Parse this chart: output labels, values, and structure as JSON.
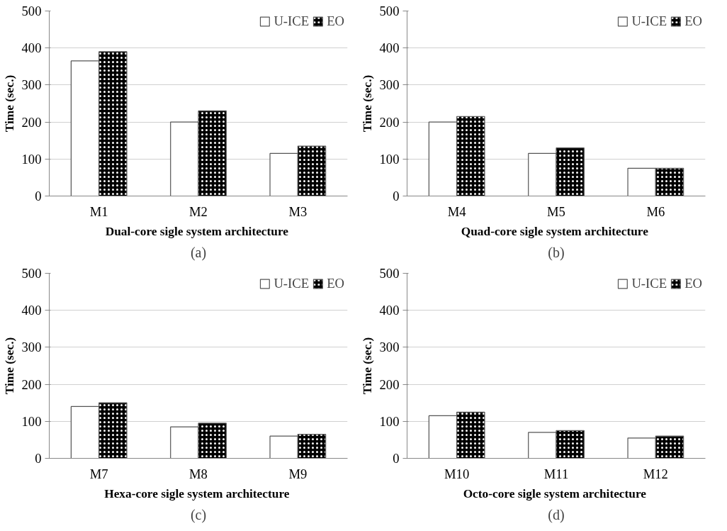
{
  "chart_data": [
    {
      "type": "bar",
      "categories": [
        "M1",
        "M2",
        "M3"
      ],
      "xlabel": "Dual-core  sigle system architecture",
      "ylabel": "Time (sec.)",
      "ylim": [
        0,
        500
      ],
      "yticks": [
        0,
        100,
        200,
        300,
        400,
        500
      ],
      "grid": "y",
      "legend": "top right",
      "annotations": [
        "(a)"
      ],
      "series": [
        {
          "name": "U-ICE",
          "color": "#ffffff",
          "values": [
            365,
            200,
            115
          ]
        },
        {
          "name": "EO",
          "color": "#000000",
          "values": [
            390,
            230,
            135
          ]
        }
      ]
    },
    {
      "type": "bar",
      "categories": [
        "M4",
        "M5",
        "M6"
      ],
      "xlabel": "Quad-core  sigle system architecture",
      "ylabel": "Time (sec.)",
      "ylim": [
        0,
        500
      ],
      "yticks": [
        0,
        100,
        200,
        300,
        400,
        500
      ],
      "grid": "y",
      "legend": "top right",
      "annotations": [
        "(b)"
      ],
      "series": [
        {
          "name": "U-ICE",
          "color": "#ffffff",
          "values": [
            200,
            115,
            75
          ]
        },
        {
          "name": "EO",
          "color": "#000000",
          "values": [
            215,
            130,
            75
          ]
        }
      ]
    },
    {
      "type": "bar",
      "categories": [
        "M7",
        "M8",
        "M9"
      ],
      "xlabel": "Hexa-core  sigle system architecture",
      "ylabel": "Time (sec.)",
      "ylim": [
        0,
        500
      ],
      "yticks": [
        0,
        100,
        200,
        300,
        400,
        500
      ],
      "grid": "y",
      "legend": "top right",
      "annotations": [
        "(c)"
      ],
      "series": [
        {
          "name": "U-ICE",
          "color": "#ffffff",
          "values": [
            140,
            85,
            60
          ]
        },
        {
          "name": "EO",
          "color": "#000000",
          "values": [
            150,
            95,
            65
          ]
        }
      ]
    },
    {
      "type": "bar",
      "categories": [
        "M10",
        "M11",
        "M12"
      ],
      "xlabel": "Octo-core  sigle system architecture",
      "ylabel": "Time (sec.)",
      "ylim": [
        0,
        500
      ],
      "yticks": [
        0,
        100,
        200,
        300,
        400,
        500
      ],
      "grid": "y",
      "legend": "top right",
      "annotations": [
        "(d)"
      ],
      "series": [
        {
          "name": "U-ICE",
          "color": "#ffffff",
          "values": [
            115,
            70,
            55
          ]
        },
        {
          "name": "EO",
          "color": "#000000",
          "values": [
            125,
            75,
            60
          ]
        }
      ]
    }
  ]
}
